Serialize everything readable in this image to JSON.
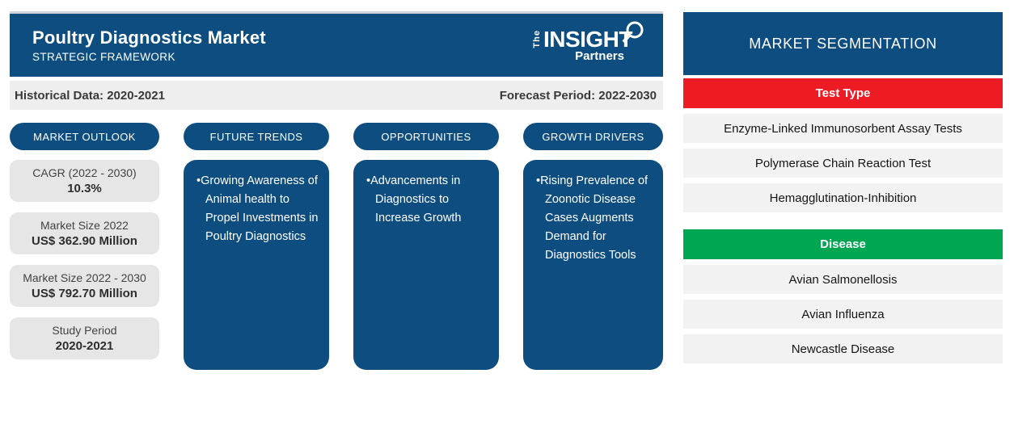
{
  "header": {
    "title": "Poultry Diagnostics Market",
    "subtitle": "STRATEGIC FRAMEWORK",
    "logo": {
      "the": "The",
      "insight": "INSIGHT",
      "partners": "Partners"
    }
  },
  "timeline": {
    "historical": "Historical Data: 2020-2021",
    "forecast": "Forecast Period: 2022-2030"
  },
  "columns": [
    {
      "pill": "MARKET OUTLOOK",
      "cards": [
        {
          "label": "CAGR (2022 - 2030)",
          "value": "10.3%"
        },
        {
          "label": "Market Size 2022",
          "value": "US$ 362.90 Million"
        },
        {
          "label": "Market Size 2022 - 2030",
          "value": "US$ 792.70 Million"
        },
        {
          "label": "Study Period",
          "value": "2020-2021"
        }
      ]
    },
    {
      "pill": "FUTURE TRENDS",
      "bullets": [
        "Growing Awareness of Animal health to Propel Investments in Poultry Diagnostics"
      ]
    },
    {
      "pill": "OPPORTUNITIES",
      "bullets": [
        "Advancements in Diagnostics to Increase Growth"
      ]
    },
    {
      "pill": "GROWTH DRIVERS",
      "bullets": [
        "Rising Prevalence of Zoonotic Disease Cases Augments Demand for Diagnostics Tools"
      ]
    }
  ],
  "segmentation": {
    "title": "MARKET SEGMENTATION",
    "groups": [
      {
        "label": "Test Type",
        "color": "#ed1c24",
        "items": [
          "Enzyme-Linked Immunosorbent Assay Tests",
          "Polymerase Chain Reaction Test",
          "Hemagglutination-Inhibition"
        ]
      },
      {
        "label": "Disease",
        "color": "#00a651",
        "items": [
          "Avian Salmonellosis",
          "Avian Influenza",
          "Newcastle Disease"
        ]
      }
    ]
  },
  "colors": {
    "brand_blue": "#0d4d80",
    "test_type_red": "#ed1c24",
    "disease_green": "#00a651",
    "bar_gray": "#eeeeee",
    "card_gray": "#e6e6e6",
    "item_gray": "#f2f2f2"
  }
}
